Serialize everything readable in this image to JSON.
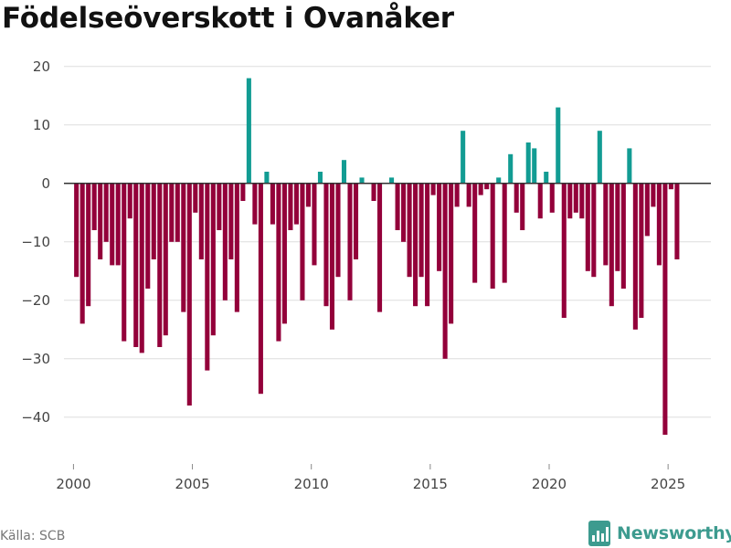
{
  "header": {
    "title": "Födelseöverskott i Ovanåker"
  },
  "footer": {
    "source": "Källa: SCB",
    "brand": "Newsworthy"
  },
  "colors": {
    "positive": "#129c93",
    "negative": "#93003a",
    "grid": "#dddddd",
    "zero": "#333333",
    "axis_text": "#444444",
    "brand": "#3d9b8f"
  },
  "chart_data": {
    "type": "bar",
    "title": "Födelseöverskott i Ovanåker",
    "xlabel": "",
    "ylabel": "",
    "ylim": [
      -48,
      22
    ],
    "xlim": [
      1999.6,
      2026.8
    ],
    "xticks": [
      2000,
      2005,
      2010,
      2015,
      2020,
      2025
    ],
    "yticks": [
      20,
      10,
      0,
      -10,
      -20,
      -30,
      -40
    ],
    "tick_labels": {
      "20": "20",
      "10": "10",
      "0": "0",
      "-10": "−10",
      "-20": "−20",
      "-30": "−30",
      "-40": "−40"
    },
    "frequency": "quarterly",
    "start": [
      2000,
      1
    ],
    "values": [
      -16,
      -24,
      -21,
      -8,
      -13,
      -10,
      -14,
      -14,
      -27,
      -6,
      -28,
      -29,
      -18,
      -13,
      -28,
      -26,
      -10,
      -10,
      -22,
      -38,
      -5,
      -13,
      -32,
      -26,
      -8,
      -20,
      -13,
      -22,
      -3,
      18,
      -7,
      -36,
      2,
      -7,
      -27,
      -24,
      -8,
      -7,
      -20,
      -4,
      -14,
      2,
      -21,
      -25,
      -16,
      4,
      -20,
      -13,
      1,
      0,
      -3,
      -22,
      0,
      1,
      -8,
      -10,
      -16,
      -21,
      -16,
      -21,
      -2,
      -15,
      -30,
      -24,
      -4,
      9,
      -4,
      -17,
      -2,
      -1,
      -18,
      1,
      -17,
      5,
      -5,
      -8,
      7,
      6,
      -6,
      2,
      -5,
      13,
      -23,
      -6,
      -5,
      -6,
      -15,
      -16,
      9,
      -14,
      -21,
      -15,
      -18,
      6,
      -25,
      -23,
      -9,
      -4,
      -14,
      -43,
      -1,
      -13
    ]
  }
}
